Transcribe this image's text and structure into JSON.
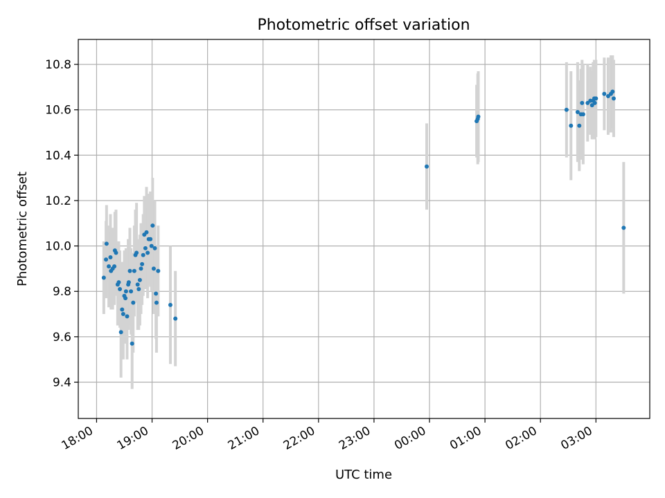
{
  "chart_data": {
    "type": "scatter",
    "title": "Photometric offset variation",
    "xlabel": "UTC time",
    "ylabel": "Photometric offset",
    "x_ticks": [
      "18:00",
      "19:00",
      "20:00",
      "21:00",
      "22:00",
      "23:00",
      "00:00",
      "01:00",
      "02:00",
      "03:00"
    ],
    "y_ticks": [
      "9.4",
      "9.6",
      "9.8",
      "10.0",
      "10.2",
      "10.4",
      "10.6",
      "10.8"
    ],
    "x_unit": "hours after 18:00 UTC",
    "xlim": [
      -0.33,
      9.97
    ],
    "ylim": [
      9.24,
      10.91
    ],
    "grid": true,
    "colors": {
      "point": "#1f77b4",
      "errorbar": "#d3d3d3",
      "grid": "#b0b0b0"
    },
    "points": [
      [
        0.13,
        9.86,
        0.16
      ],
      [
        0.17,
        9.94,
        0.17
      ],
      [
        0.18,
        10.01,
        0.17
      ],
      [
        0.22,
        9.91,
        0.18
      ],
      [
        0.25,
        9.95,
        0.19
      ],
      [
        0.26,
        9.89,
        0.17
      ],
      [
        0.29,
        9.9,
        0.18
      ],
      [
        0.32,
        9.91,
        0.17
      ],
      [
        0.33,
        9.98,
        0.17
      ],
      [
        0.35,
        9.97,
        0.19
      ],
      [
        0.38,
        9.83,
        0.18
      ],
      [
        0.4,
        9.84,
        0.18
      ],
      [
        0.42,
        9.81,
        0.17
      ],
      [
        0.44,
        9.62,
        0.2
      ],
      [
        0.46,
        9.72,
        0.21
      ],
      [
        0.48,
        9.7,
        0.2
      ],
      [
        0.5,
        9.78,
        0.2
      ],
      [
        0.52,
        9.77,
        0.2
      ],
      [
        0.53,
        9.8,
        0.19
      ],
      [
        0.55,
        9.69,
        0.19
      ],
      [
        0.57,
        9.83,
        0.2
      ],
      [
        0.58,
        9.84,
        0.19
      ],
      [
        0.6,
        9.89,
        0.19
      ],
      [
        0.62,
        9.8,
        0.19
      ],
      [
        0.64,
        9.57,
        0.2
      ],
      [
        0.66,
        9.75,
        0.22
      ],
      [
        0.68,
        9.89,
        0.2
      ],
      [
        0.7,
        9.96,
        0.2
      ],
      [
        0.72,
        9.97,
        0.22
      ],
      [
        0.74,
        9.83,
        0.2
      ],
      [
        0.76,
        9.81,
        0.18
      ],
      [
        0.78,
        9.85,
        0.2
      ],
      [
        0.8,
        9.9,
        0.2
      ],
      [
        0.82,
        9.92,
        0.18
      ],
      [
        0.84,
        9.96,
        0.18
      ],
      [
        0.86,
        10.05,
        0.17
      ],
      [
        0.88,
        9.99,
        0.18
      ],
      [
        0.9,
        10.06,
        0.2
      ],
      [
        0.92,
        9.97,
        0.2
      ],
      [
        0.94,
        10.03,
        0.2
      ],
      [
        0.97,
        10.03,
        0.21
      ],
      [
        0.99,
        10.0,
        0.2
      ],
      [
        1.01,
        10.09,
        0.21
      ],
      [
        1.03,
        9.9,
        0.2
      ],
      [
        1.05,
        9.99,
        0.21
      ],
      [
        1.07,
        9.79,
        0.2
      ],
      [
        1.08,
        9.75,
        0.22
      ],
      [
        1.11,
        9.89,
        0.2
      ],
      [
        1.33,
        9.74,
        0.26
      ],
      [
        1.42,
        9.68,
        0.21
      ],
      [
        5.95,
        10.35,
        0.19
      ],
      [
        6.85,
        10.55,
        0.16
      ],
      [
        6.87,
        10.56,
        0.2
      ],
      [
        6.88,
        10.57,
        0.2
      ],
      [
        8.47,
        10.6,
        0.21
      ],
      [
        8.55,
        10.53,
        0.24
      ],
      [
        8.67,
        10.59,
        0.22
      ],
      [
        8.7,
        10.53,
        0.2
      ],
      [
        8.73,
        10.58,
        0.2
      ],
      [
        8.75,
        10.63,
        0.19
      ],
      [
        8.77,
        10.58,
        0.22
      ],
      [
        8.85,
        10.63,
        0.17
      ],
      [
        8.9,
        10.64,
        0.15
      ],
      [
        8.93,
        10.62,
        0.15
      ],
      [
        8.95,
        10.64,
        0.17
      ],
      [
        8.97,
        10.65,
        0.17
      ],
      [
        8.98,
        10.63,
        0.16
      ],
      [
        9.0,
        10.65,
        0.17
      ],
      [
        9.15,
        10.67,
        0.16
      ],
      [
        9.22,
        10.66,
        0.17
      ],
      [
        9.27,
        10.67,
        0.17
      ],
      [
        9.3,
        10.68,
        0.16
      ],
      [
        9.32,
        10.65,
        0.17
      ],
      [
        9.5,
        10.08,
        0.29
      ]
    ]
  }
}
